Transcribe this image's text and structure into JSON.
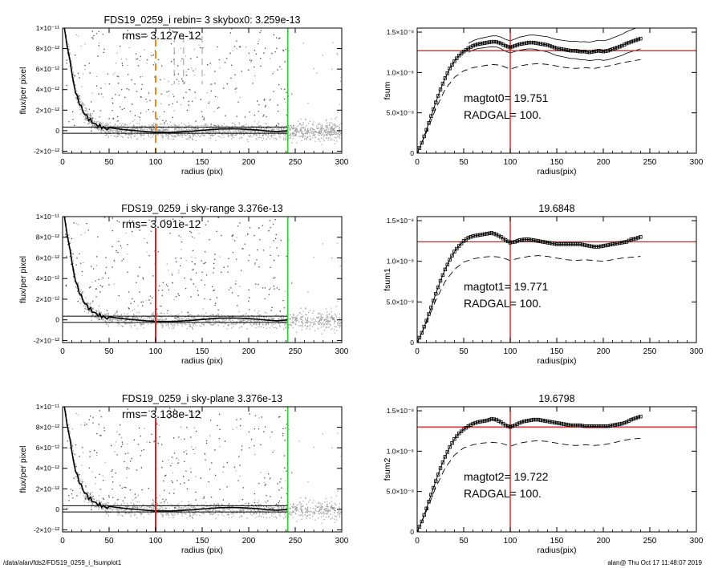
{
  "footer": {
    "path": "/data/alan/fds2/FDS19_0259_i_fsumplot1",
    "stamp": "alan@  Thu Oct 17 11:48:07 2019"
  },
  "colors": {
    "axes": "#000000",
    "points": "#9a9a9a",
    "green_line": "#33cc33",
    "red_line": "#dd2222",
    "orange_line": "#ee8822"
  },
  "chart_data": [
    {
      "id": "profile-top",
      "type": "scatter",
      "title": "FDS19_0259_i rebin= 3    skybox0:  3.259e-13",
      "rms_text": "rms= 3.127e-12",
      "xlabel": "radius (pix)",
      "ylabel": "flux/per pixel",
      "xlim": [
        0,
        300
      ],
      "ylim": [
        -2.2e-12,
        1e-11
      ],
      "x_ticks": [
        0,
        50,
        100,
        150,
        200,
        250,
        300
      ],
      "x_tick_labels": [
        "0",
        "50",
        "100",
        "150",
        "200",
        "250",
        "300"
      ],
      "y_ticks": [
        -2e-12,
        0,
        2e-12,
        4e-12,
        6e-12,
        8e-12,
        1e-11
      ],
      "y_tick_labels": [
        "-2×10⁻¹²",
        "0",
        "2×10⁻¹²",
        "4×10⁻¹²",
        "6×10⁻¹²",
        "8×10⁻¹²",
        "1×10⁻¹¹"
      ],
      "sky_band": [
        -2.5e-13,
        3.5e-13
      ],
      "green_line_x": 242,
      "vline": {
        "x": 100,
        "color": "#ee8822",
        "style": "dashed"
      },
      "grey_dashes_x": [
        120,
        130,
        150
      ],
      "profile": {
        "x": [
          2,
          5,
          8,
          10,
          12,
          14,
          16,
          18,
          20,
          22,
          24,
          26,
          28,
          30,
          32,
          34,
          36,
          38,
          40,
          42,
          44,
          46,
          48,
          50,
          55,
          60,
          65,
          70,
          75,
          80,
          85,
          90,
          95,
          100,
          110,
          120,
          130,
          140,
          150,
          160,
          170,
          180,
          190,
          200,
          210,
          220,
          230,
          242
        ],
        "y": [
          1e-11,
          8.2e-12,
          6.8e-12,
          5.6e-12,
          4.6e-12,
          3.8e-12,
          3.2e-12,
          2.7e-12,
          2.3e-12,
          1.9e-12,
          1.6e-12,
          1.4e-12,
          1.15e-12,
          1e-12,
          8.5e-13,
          7e-13,
          6e-13,
          5e-13,
          4.2e-13,
          3.5e-13,
          2.8e-13,
          2.2e-13,
          1.8e-13,
          1.5e-13,
          1e-13,
          8e-14,
          6e-14,
          5e-14,
          4e-14,
          5e-14,
          4e-14,
          3e-14,
          3e-14,
          2e-14,
          2e-14,
          1e-14,
          1e-14,
          0.0,
          0.0,
          0.0,
          0.0,
          -1e-14,
          0.0,
          -1e-14,
          0.0,
          -1e-14,
          0.0,
          0.0
        ]
      }
    },
    {
      "id": "growth-top",
      "type": "scatter",
      "title": "",
      "mag_text": "magtot0=  19.751",
      "radgal_text": "RADGAL=    100.",
      "xlabel": "radius(pix)",
      "ylabel": "fsum",
      "xlim": [
        0,
        300
      ],
      "ylim": [
        0,
        1.55e-08
      ],
      "x_ticks": [
        0,
        50,
        100,
        150,
        200,
        250,
        300
      ],
      "x_tick_labels": [
        "0",
        "50",
        "100",
        "150",
        "200",
        "250",
        "300"
      ],
      "y_ticks": [
        0,
        5e-09,
        1e-08,
        1.5e-08
      ],
      "y_tick_labels": [
        "0",
        "5.0×10⁻⁹",
        "1.0×10⁻⁸",
        "1.5×10⁻⁸"
      ],
      "hline_y": 1.27e-08,
      "vline_x": 100,
      "envelope": true,
      "growth": {
        "x": [
          0,
          5,
          10,
          15,
          20,
          25,
          30,
          35,
          40,
          45,
          50,
          55,
          60,
          65,
          70,
          75,
          80,
          85,
          90,
          95,
          100,
          105,
          110,
          115,
          120,
          125,
          130,
          135,
          140,
          145,
          150,
          155,
          160,
          165,
          170,
          175,
          180,
          185,
          190,
          195,
          200,
          205,
          210,
          215,
          220,
          225,
          230,
          235,
          240
        ],
        "y": [
          0.0,
          1.3e-09,
          2.9e-09,
          4.6e-09,
          6.3e-09,
          7.9e-09,
          9.3e-09,
          1.05e-08,
          1.14e-08,
          1.21e-08,
          1.26e-08,
          1.3e-08,
          1.33e-08,
          1.35e-08,
          1.36e-08,
          1.37e-08,
          1.38e-08,
          1.38e-08,
          1.36e-08,
          1.33e-08,
          1.31e-08,
          1.33e-08,
          1.35e-08,
          1.36e-08,
          1.37e-08,
          1.37e-08,
          1.36e-08,
          1.35e-08,
          1.34e-08,
          1.32e-08,
          1.3e-08,
          1.29e-08,
          1.28e-08,
          1.27e-08,
          1.27e-08,
          1.26e-08,
          1.26e-08,
          1.25e-08,
          1.26e-08,
          1.27e-08,
          1.26e-08,
          1.27e-08,
          1.29e-08,
          1.31e-08,
          1.33e-08,
          1.36e-08,
          1.38e-08,
          1.4e-08,
          1.42e-08
        ]
      },
      "lower": {
        "x": [
          0,
          10,
          20,
          30,
          40,
          50,
          60,
          70,
          80,
          90,
          100,
          110,
          120,
          130,
          140,
          150,
          160,
          170,
          180,
          190,
          200,
          210,
          220,
          230,
          240
        ],
        "y": [
          0.0,
          2.6e-09,
          5.5e-09,
          7.9e-09,
          9.4e-09,
          1.02e-08,
          1.06e-08,
          1.08e-08,
          1.1e-08,
          1.09e-08,
          1.04e-08,
          1.08e-08,
          1.1e-08,
          1.11e-08,
          1.1e-08,
          1.08e-08,
          1.06e-08,
          1.05e-08,
          1.06e-08,
          1.05e-08,
          1.07e-08,
          1.09e-08,
          1.12e-08,
          1.14e-08,
          1.16e-08
        ]
      }
    },
    {
      "id": "profile-mid",
      "type": "scatter",
      "title": "FDS19_0259_i sky-range  3.376e-13",
      "rms_text": "rms= 3.091e-12",
      "xlabel": "radius (pix)",
      "ylabel": "flux/per pixel",
      "xlim": [
        0,
        300
      ],
      "ylim": [
        -2.2e-12,
        1e-11
      ],
      "x_ticks": [
        0,
        50,
        100,
        150,
        200,
        250,
        300
      ],
      "x_tick_labels": [
        "0",
        "50",
        "100",
        "150",
        "200",
        "250",
        "300"
      ],
      "y_ticks": [
        -2e-12,
        0,
        2e-12,
        4e-12,
        6e-12,
        8e-12,
        1e-11
      ],
      "y_tick_labels": [
        "-2×10⁻¹²",
        "0",
        "2×10⁻¹²",
        "4×10⁻¹²",
        "6×10⁻¹²",
        "8×10⁻¹²",
        "1×10⁻¹¹"
      ],
      "sky_band": [
        -2.5e-13,
        3.5e-13
      ],
      "green_line_x": 242,
      "vline": {
        "x": 100,
        "color": "#dd2222",
        "style": "solid"
      },
      "grey_dashes_x": [],
      "profile": {
        "x": [
          2,
          5,
          8,
          10,
          12,
          14,
          16,
          18,
          20,
          22,
          24,
          26,
          28,
          30,
          32,
          34,
          36,
          38,
          40,
          42,
          44,
          46,
          48,
          50,
          55,
          60,
          65,
          70,
          75,
          80,
          85,
          90,
          95,
          100,
          110,
          120,
          130,
          140,
          150,
          160,
          170,
          180,
          190,
          200,
          210,
          220,
          230,
          242
        ],
        "y": [
          1e-11,
          8.2e-12,
          6.8e-12,
          5.6e-12,
          4.6e-12,
          3.8e-12,
          3.2e-12,
          2.7e-12,
          2.3e-12,
          1.9e-12,
          1.6e-12,
          1.4e-12,
          1.15e-12,
          1e-12,
          8.5e-13,
          7e-13,
          6e-13,
          5e-13,
          4.2e-13,
          3.5e-13,
          2.8e-13,
          2.2e-13,
          1.8e-13,
          1.5e-13,
          1e-13,
          8e-14,
          6e-14,
          5e-14,
          4e-14,
          5e-14,
          4e-14,
          3e-14,
          3e-14,
          2e-14,
          2e-14,
          1e-14,
          1e-14,
          0.0,
          0.0,
          0.0,
          0.0,
          -1e-14,
          0.0,
          -1e-14,
          0.0,
          -1e-14,
          0.0,
          0.0
        ]
      }
    },
    {
      "id": "growth-mid",
      "type": "scatter",
      "title": "19.6848",
      "mag_text": "magtot1=  19.771",
      "radgal_text": "RADGAL=    100.",
      "xlabel": "radius(pix)",
      "ylabel": "fsum1",
      "xlim": [
        0,
        300
      ],
      "ylim": [
        0,
        1.55e-08
      ],
      "x_ticks": [
        0,
        50,
        100,
        150,
        200,
        250,
        300
      ],
      "x_tick_labels": [
        "0",
        "50",
        "100",
        "150",
        "200",
        "250",
        "300"
      ],
      "y_ticks": [
        0,
        5e-09,
        1e-08,
        1.5e-08
      ],
      "y_tick_labels": [
        "0",
        "5.0×10⁻⁹",
        "1.0×10⁻⁸",
        "1.5×10⁻⁸"
      ],
      "hline_y": 1.24e-08,
      "vline_x": 100,
      "envelope": false,
      "growth": {
        "x": [
          0,
          5,
          10,
          15,
          20,
          25,
          30,
          35,
          40,
          45,
          50,
          55,
          60,
          65,
          70,
          75,
          80,
          85,
          90,
          95,
          100,
          105,
          110,
          115,
          120,
          125,
          130,
          135,
          140,
          145,
          150,
          155,
          160,
          165,
          170,
          175,
          180,
          185,
          190,
          195,
          200,
          205,
          210,
          215,
          220,
          225,
          230,
          235,
          240
        ],
        "y": [
          0.0,
          1.2e-09,
          2.7e-09,
          4.3e-09,
          6e-09,
          7.6e-09,
          9e-09,
          1.02e-08,
          1.12e-08,
          1.19e-08,
          1.25e-08,
          1.29e-08,
          1.31e-08,
          1.32e-08,
          1.33e-08,
          1.34e-08,
          1.35e-08,
          1.33e-08,
          1.3e-08,
          1.26e-08,
          1.23e-08,
          1.24e-08,
          1.26e-08,
          1.27e-08,
          1.27e-08,
          1.26e-08,
          1.25e-08,
          1.24e-08,
          1.23e-08,
          1.22e-08,
          1.21e-08,
          1.21e-08,
          1.21e-08,
          1.21e-08,
          1.21e-08,
          1.21e-08,
          1.2e-08,
          1.19e-08,
          1.18e-08,
          1.18e-08,
          1.19e-08,
          1.2e-08,
          1.21e-08,
          1.22e-08,
          1.23e-08,
          1.24e-08,
          1.27e-08,
          1.28e-08,
          1.3e-08
        ]
      },
      "lower": {
        "x": [
          0,
          10,
          20,
          30,
          40,
          50,
          60,
          70,
          80,
          90,
          100,
          110,
          120,
          130,
          140,
          150,
          160,
          170,
          180,
          190,
          200,
          210,
          220,
          230,
          240
        ],
        "y": [
          0.0,
          2.4e-09,
          5.2e-09,
          7.5e-09,
          9e-09,
          9.9e-09,
          1.03e-08,
          1.05e-08,
          1.06e-08,
          1.05e-08,
          1.01e-08,
          1.04e-08,
          1.06e-08,
          1.07e-08,
          1.06e-08,
          1.04e-08,
          1.02e-08,
          1.01e-08,
          1.02e-08,
          1.01e-08,
          1e-08,
          1.02e-08,
          1.04e-08,
          1.05e-08,
          1.06e-08
        ]
      }
    },
    {
      "id": "profile-bot",
      "type": "scatter",
      "title": "FDS19_0259_i sky-plane  3.376e-13",
      "rms_text": "rms= 3.138e-12",
      "xlabel": "radius (pix)",
      "ylabel": "flux/per pixel",
      "xlim": [
        0,
        300
      ],
      "ylim": [
        -2.2e-12,
        1e-11
      ],
      "x_ticks": [
        0,
        50,
        100,
        150,
        200,
        250,
        300
      ],
      "x_tick_labels": [
        "0",
        "50",
        "100",
        "150",
        "200",
        "250",
        "300"
      ],
      "y_ticks": [
        -2e-12,
        0,
        2e-12,
        4e-12,
        6e-12,
        8e-12,
        1e-11
      ],
      "y_tick_labels": [
        "-2×10⁻¹²",
        "0",
        "2×10⁻¹²",
        "4×10⁻¹²",
        "6×10⁻¹²",
        "8×10⁻¹²",
        "1×10⁻¹¹"
      ],
      "sky_band": [
        -2.5e-13,
        3.5e-13
      ],
      "green_line_x": 242,
      "vline": {
        "x": 100,
        "color": "#dd2222",
        "style": "solid"
      },
      "grey_dashes_x": [],
      "profile": {
        "x": [
          2,
          5,
          8,
          10,
          12,
          14,
          16,
          18,
          20,
          22,
          24,
          26,
          28,
          30,
          32,
          34,
          36,
          38,
          40,
          42,
          44,
          46,
          48,
          50,
          55,
          60,
          65,
          70,
          75,
          80,
          85,
          90,
          95,
          100,
          110,
          120,
          130,
          140,
          150,
          160,
          170,
          180,
          190,
          200,
          210,
          220,
          230,
          242
        ],
        "y": [
          1e-11,
          8.2e-12,
          6.8e-12,
          5.6e-12,
          4.6e-12,
          3.8e-12,
          3.2e-12,
          2.7e-12,
          2.3e-12,
          1.9e-12,
          1.6e-12,
          1.4e-12,
          1.15e-12,
          1e-12,
          8.5e-13,
          7e-13,
          6e-13,
          5e-13,
          4.2e-13,
          3.5e-13,
          2.8e-13,
          2.2e-13,
          1.8e-13,
          1.5e-13,
          1e-13,
          8e-14,
          6e-14,
          5e-14,
          4e-14,
          5e-14,
          4e-14,
          3e-14,
          3e-14,
          2e-14,
          2e-14,
          1e-14,
          1e-14,
          0.0,
          0.0,
          0.0,
          0.0,
          -1e-14,
          0.0,
          -1e-14,
          0.0,
          -1e-14,
          0.0,
          0.0
        ]
      }
    },
    {
      "id": "growth-bot",
      "type": "scatter",
      "title": "19.6798",
      "mag_text": "magtot2=  19.722",
      "radgal_text": "RADGAL=    100.",
      "xlabel": "radius(pix)",
      "ylabel": "fsum2",
      "xlim": [
        0,
        300
      ],
      "ylim": [
        0,
        1.55e-08
      ],
      "x_ticks": [
        0,
        50,
        100,
        150,
        200,
        250,
        300
      ],
      "x_tick_labels": [
        "0",
        "50",
        "100",
        "150",
        "200",
        "250",
        "300"
      ],
      "y_ticks": [
        0,
        5e-09,
        1e-08,
        1.5e-08
      ],
      "y_tick_labels": [
        "0",
        "5.0×10⁻⁹",
        "1.0×10⁻⁸",
        "1.5×10⁻⁸"
      ],
      "hline_y": 1.3e-08,
      "vline_x": 100,
      "envelope": false,
      "growth": {
        "x": [
          0,
          5,
          10,
          15,
          20,
          25,
          30,
          35,
          40,
          45,
          50,
          55,
          60,
          65,
          70,
          75,
          80,
          85,
          90,
          95,
          100,
          105,
          110,
          115,
          120,
          125,
          130,
          135,
          140,
          145,
          150,
          155,
          160,
          165,
          170,
          175,
          180,
          185,
          190,
          195,
          200,
          205,
          210,
          215,
          220,
          225,
          230,
          235,
          240
        ],
        "y": [
          0.0,
          1.3e-09,
          2.9e-09,
          4.6e-09,
          6.3e-09,
          7.9e-09,
          9.3e-09,
          1.05e-08,
          1.15e-08,
          1.22e-08,
          1.27e-08,
          1.31e-08,
          1.34e-08,
          1.36e-08,
          1.37e-08,
          1.38e-08,
          1.4e-08,
          1.39e-08,
          1.36e-08,
          1.32e-08,
          1.3e-08,
          1.32e-08,
          1.35e-08,
          1.37e-08,
          1.38e-08,
          1.39e-08,
          1.39e-08,
          1.38e-08,
          1.37e-08,
          1.36e-08,
          1.35e-08,
          1.34e-08,
          1.33e-08,
          1.32e-08,
          1.32e-08,
          1.32e-08,
          1.31e-08,
          1.31e-08,
          1.31e-08,
          1.31e-08,
          1.31e-08,
          1.31e-08,
          1.32e-08,
          1.33e-08,
          1.34e-08,
          1.36e-08,
          1.39e-08,
          1.41e-08,
          1.43e-08
        ]
      },
      "lower": {
        "x": [
          0,
          10,
          20,
          30,
          40,
          50,
          60,
          70,
          80,
          90,
          100,
          110,
          120,
          130,
          140,
          150,
          160,
          170,
          180,
          190,
          200,
          210,
          220,
          230,
          240
        ],
        "y": [
          0.0,
          2.6e-09,
          5.5e-09,
          7.9e-09,
          9.5e-09,
          1.04e-08,
          1.08e-08,
          1.1e-08,
          1.11e-08,
          1.1e-08,
          1.06e-08,
          1.1e-08,
          1.12e-08,
          1.13e-08,
          1.12e-08,
          1.1e-08,
          1.08e-08,
          1.07e-08,
          1.08e-08,
          1.07e-08,
          1.08e-08,
          1.1e-08,
          1.13e-08,
          1.15e-08,
          1.16e-08
        ]
      }
    }
  ]
}
